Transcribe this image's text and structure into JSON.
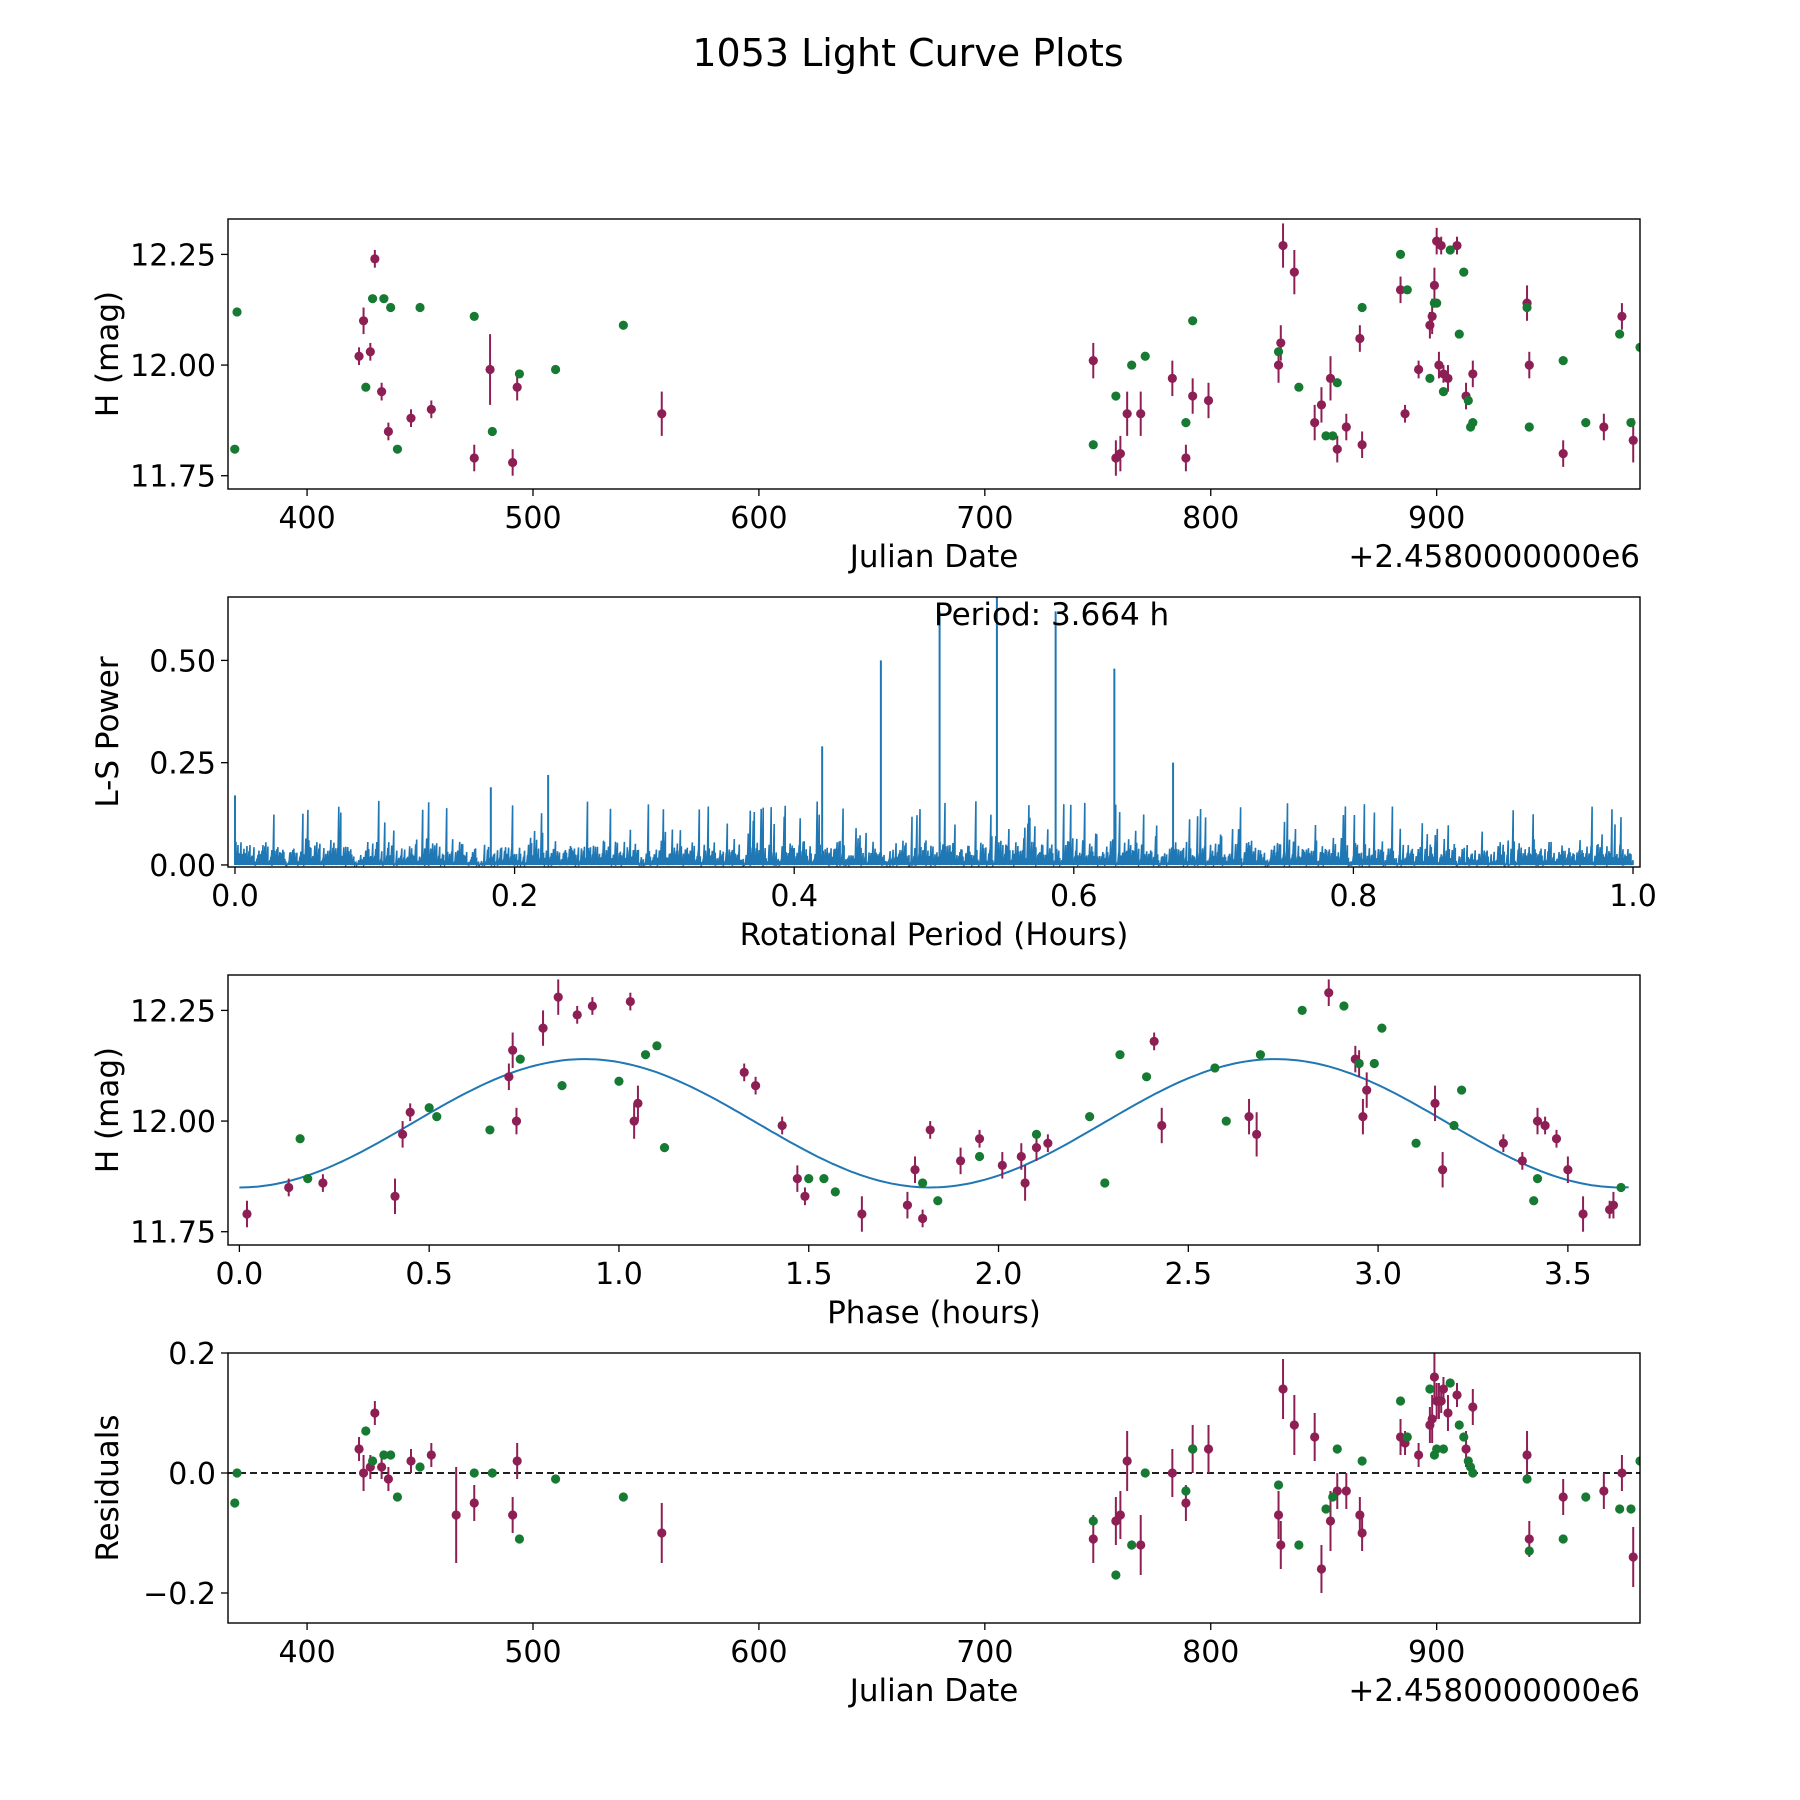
{
  "title": "1053 Light Curve Plots",
  "colors": {
    "maroon": "#8e1f55",
    "green": "#167a32",
    "line": "#1f77b4"
  },
  "chart_data": [
    {
      "type": "scatter",
      "name": "light-curve",
      "xlabel": "Julian Date",
      "ylabel": "H (mag)",
      "offset_label": "+2.4580000000e6",
      "xlim": [
        365,
        990
      ],
      "ylim": [
        11.72,
        12.33
      ],
      "xticks": [
        400,
        500,
        600,
        700,
        800,
        900
      ],
      "xtick_labels": [
        "400",
        "500",
        "600",
        "700",
        "800",
        "900"
      ],
      "yticks": [
        11.75,
        12.0,
        12.25
      ],
      "ytick_labels": [
        "11.75",
        "12.00",
        "12.25"
      ],
      "series": [
        {
          "name": "maroon",
          "color": "#8e1f55",
          "x": [
            423,
            425,
            428,
            430,
            433,
            436,
            446,
            455,
            474,
            481,
            491,
            493,
            557,
            748,
            758,
            760,
            763,
            769,
            783,
            789,
            792,
            799,
            830,
            831,
            832,
            837,
            846,
            849,
            853,
            856,
            860,
            866,
            867,
            884,
            886,
            892,
            897,
            898,
            899,
            900,
            901,
            902,
            903,
            905,
            909,
            913,
            916,
            940,
            941,
            956,
            974,
            982,
            987
          ],
          "y": [
            12.02,
            12.1,
            12.03,
            12.24,
            11.94,
            11.85,
            11.88,
            11.9,
            11.79,
            11.99,
            11.78,
            11.95,
            11.89,
            12.01,
            11.79,
            11.8,
            11.89,
            11.89,
            11.97,
            11.79,
            11.93,
            11.92,
            12.0,
            12.05,
            12.27,
            12.21,
            11.87,
            11.91,
            11.97,
            11.81,
            11.86,
            12.06,
            11.82,
            12.17,
            11.89,
            11.99,
            12.09,
            12.11,
            12.18,
            12.28,
            12.0,
            12.27,
            11.98,
            11.97,
            12.27,
            11.93,
            11.98,
            12.14,
            12.0,
            11.8,
            11.86,
            12.11,
            11.83
          ],
          "err": [
            0.02,
            0.03,
            0.02,
            0.02,
            0.02,
            0.02,
            0.02,
            0.02,
            0.03,
            0.08,
            0.03,
            0.03,
            0.05,
            0.04,
            0.04,
            0.04,
            0.05,
            0.05,
            0.04,
            0.03,
            0.04,
            0.04,
            0.04,
            0.04,
            0.05,
            0.05,
            0.04,
            0.04,
            0.05,
            0.03,
            0.03,
            0.03,
            0.03,
            0.03,
            0.02,
            0.02,
            0.03,
            0.04,
            0.04,
            0.03,
            0.03,
            0.02,
            0.02,
            0.03,
            0.02,
            0.03,
            0.03,
            0.04,
            0.03,
            0.03,
            0.03,
            0.03,
            0.05
          ]
        },
        {
          "name": "green",
          "color": "#167a32",
          "x": [
            368,
            369,
            426,
            429,
            434,
            437,
            440,
            450,
            474,
            482,
            494,
            510,
            540,
            748,
            758,
            765,
            771,
            789,
            792,
            830,
            839,
            851,
            854,
            856,
            867,
            884,
            887,
            897,
            899,
            900,
            903,
            906,
            910,
            912,
            914,
            915,
            916,
            940,
            941,
            956,
            966,
            981,
            986,
            990
          ],
          "y": [
            11.81,
            12.12,
            11.95,
            12.15,
            12.15,
            12.13,
            11.81,
            12.13,
            12.11,
            11.85,
            11.98,
            11.99,
            12.09,
            11.82,
            11.93,
            12.0,
            12.02,
            11.87,
            12.1,
            12.03,
            11.95,
            11.84,
            11.84,
            11.96,
            12.13,
            12.25,
            12.17,
            11.97,
            12.14,
            12.14,
            11.94,
            12.26,
            12.07,
            12.21,
            11.92,
            11.86,
            11.87,
            12.13,
            11.86,
            12.01,
            11.87,
            12.07,
            11.87,
            12.04
          ]
        }
      ]
    },
    {
      "type": "line",
      "name": "periodogram",
      "xlabel": "Rotational Period (Hours)",
      "ylabel": "L-S Power",
      "annotation": "Period: 3.664 h",
      "xlim": [
        -0.005,
        1.005
      ],
      "ylim": [
        -0.005,
        0.655
      ],
      "xticks": [
        0.0,
        0.2,
        0.4,
        0.6,
        0.8,
        1.0
      ],
      "xtick_labels": [
        "0.0",
        "0.2",
        "0.4",
        "0.6",
        "0.8",
        "1.0"
      ],
      "yticks": [
        0.0,
        0.25,
        0.5
      ],
      "ytick_labels": [
        "0.00",
        "0.25",
        "0.50"
      ],
      "noise_level": 0.07,
      "peaks": [
        {
          "x": 0.42,
          "y": 0.29
        },
        {
          "x": 0.462,
          "y": 0.5
        },
        {
          "x": 0.504,
          "y": 0.62
        },
        {
          "x": 0.545,
          "y": 0.655
        },
        {
          "x": 0.587,
          "y": 0.62
        },
        {
          "x": 0.629,
          "y": 0.48
        },
        {
          "x": 0.671,
          "y": 0.25
        },
        {
          "x": 0.224,
          "y": 0.22
        },
        {
          "x": 0.183,
          "y": 0.19
        },
        {
          "x": 0.0,
          "y": 0.17
        }
      ]
    },
    {
      "type": "scatter",
      "name": "phase-folded",
      "xlabel": "Phase (hours)",
      "ylabel": "H (mag)",
      "xlim": [
        -0.03,
        3.69
      ],
      "ylim": [
        11.72,
        12.33
      ],
      "xticks": [
        0.0,
        0.5,
        1.0,
        1.5,
        2.0,
        2.5,
        3.0,
        3.5
      ],
      "xtick_labels": [
        "0.0",
        "0.5",
        "1.0",
        "1.5",
        "2.0",
        "2.5",
        "3.0",
        "3.5"
      ],
      "yticks": [
        11.75,
        12.0,
        12.25
      ],
      "ytick_labels": [
        "11.75",
        "12.00",
        "12.25"
      ],
      "fit": {
        "period": 1.82,
        "mean": 11.995,
        "amplitude": 0.145,
        "phase_of_max": 0.91
      },
      "series": [
        {
          "name": "maroon",
          "color": "#8e1f55",
          "x": [
            0.02,
            0.13,
            0.22,
            0.41,
            0.43,
            0.45,
            0.71,
            0.72,
            0.73,
            0.8,
            0.84,
            0.89,
            0.93,
            1.03,
            1.04,
            1.05,
            1.33,
            1.36,
            1.43,
            1.47,
            1.49,
            1.64,
            1.76,
            1.78,
            1.8,
            1.82,
            1.9,
            1.95,
            2.01,
            2.06,
            2.07,
            2.1,
            2.13,
            2.41,
            2.43,
            2.66,
            2.68,
            2.87,
            2.94,
            2.95,
            2.96,
            2.97,
            3.15,
            3.17,
            3.33,
            3.38,
            3.42,
            3.44,
            3.47,
            3.5,
            3.54,
            3.61,
            3.62
          ],
          "y": [
            11.79,
            11.85,
            11.86,
            11.83,
            11.97,
            12.02,
            12.1,
            12.16,
            12.0,
            12.21,
            12.28,
            12.24,
            12.26,
            12.27,
            12.0,
            12.04,
            12.11,
            12.08,
            11.99,
            11.87,
            11.83,
            11.79,
            11.81,
            11.89,
            11.78,
            11.98,
            11.91,
            11.96,
            11.9,
            11.92,
            11.86,
            11.94,
            11.95,
            12.18,
            11.99,
            12.01,
            11.97,
            12.29,
            12.14,
            12.13,
            12.01,
            12.07,
            12.04,
            11.89,
            11.95,
            11.91,
            12.0,
            11.99,
            11.96,
            11.89,
            11.79,
            11.8,
            11.81
          ],
          "err": [
            0.03,
            0.02,
            0.02,
            0.04,
            0.03,
            0.02,
            0.03,
            0.04,
            0.03,
            0.04,
            0.04,
            0.02,
            0.02,
            0.02,
            0.04,
            0.04,
            0.02,
            0.02,
            0.02,
            0.03,
            0.02,
            0.04,
            0.03,
            0.03,
            0.02,
            0.02,
            0.03,
            0.02,
            0.03,
            0.03,
            0.04,
            0.03,
            0.02,
            0.02,
            0.04,
            0.04,
            0.05,
            0.03,
            0.03,
            0.03,
            0.04,
            0.04,
            0.04,
            0.04,
            0.02,
            0.02,
            0.03,
            0.02,
            0.02,
            0.03,
            0.04,
            0.02,
            0.03
          ]
        },
        {
          "name": "green",
          "color": "#167a32",
          "x": [
            0.16,
            0.18,
            0.5,
            0.52,
            0.66,
            0.74,
            0.85,
            1.0,
            1.07,
            1.1,
            1.12,
            1.5,
            1.54,
            1.57,
            1.8,
            1.84,
            1.95,
            2.1,
            2.24,
            2.28,
            2.32,
            2.39,
            2.57,
            2.6,
            2.69,
            2.8,
            2.91,
            2.95,
            2.99,
            3.01,
            3.1,
            3.2,
            3.22,
            3.41,
            3.42,
            3.64
          ],
          "y": [
            11.96,
            11.87,
            12.03,
            12.01,
            11.98,
            12.14,
            12.08,
            12.09,
            12.15,
            12.17,
            11.94,
            11.87,
            11.87,
            11.84,
            11.86,
            11.82,
            11.92,
            11.97,
            12.01,
            11.86,
            12.15,
            12.1,
            12.12,
            12.0,
            12.15,
            12.25,
            12.26,
            12.13,
            12.13,
            12.21,
            11.95,
            11.99,
            12.07,
            11.82,
            11.87,
            11.85
          ]
        }
      ]
    },
    {
      "type": "scatter",
      "name": "residuals",
      "xlabel": "Julian Date",
      "ylabel": "Residuals",
      "offset_label": "+2.4580000000e6",
      "xlim": [
        365,
        990
      ],
      "ylim": [
        -0.25,
        0.2
      ],
      "xticks": [
        400,
        500,
        600,
        700,
        800,
        900
      ],
      "xtick_labels": [
        "400",
        "500",
        "600",
        "700",
        "800",
        "900"
      ],
      "yticks": [
        -0.2,
        0.0,
        0.2
      ],
      "ytick_labels": [
        "−0.2",
        "0.0",
        "0.2"
      ],
      "reference_line": 0.0,
      "series": [
        {
          "name": "maroon",
          "color": "#8e1f55",
          "x": [
            423,
            425,
            428,
            430,
            433,
            436,
            446,
            455,
            466,
            474,
            491,
            493,
            557,
            748,
            758,
            760,
            763,
            769,
            783,
            789,
            792,
            799,
            830,
            831,
            832,
            837,
            846,
            849,
            853,
            856,
            860,
            866,
            867,
            884,
            886,
            892,
            897,
            898,
            899,
            900,
            901,
            902,
            903,
            905,
            909,
            913,
            916,
            940,
            941,
            956,
            974,
            982,
            987
          ],
          "y": [
            0.04,
            0.0,
            0.01,
            0.1,
            0.01,
            -0.01,
            0.02,
            0.03,
            -0.07,
            -0.05,
            -0.07,
            0.02,
            -0.1,
            -0.11,
            -0.08,
            -0.07,
            0.02,
            -0.12,
            0.0,
            -0.05,
            0.04,
            0.04,
            -0.07,
            -0.12,
            0.14,
            0.08,
            0.06,
            -0.16,
            -0.08,
            -0.03,
            -0.03,
            -0.07,
            -0.1,
            0.06,
            0.05,
            0.03,
            0.08,
            0.09,
            0.16,
            0.12,
            0.12,
            0.12,
            0.14,
            0.1,
            0.13,
            0.04,
            0.11,
            0.03,
            -0.11,
            -0.04,
            -0.03,
            0.0,
            -0.14
          ],
          "err": [
            0.02,
            0.03,
            0.02,
            0.02,
            0.02,
            0.02,
            0.02,
            0.02,
            0.08,
            0.03,
            0.03,
            0.03,
            0.05,
            0.04,
            0.04,
            0.04,
            0.05,
            0.05,
            0.04,
            0.03,
            0.04,
            0.04,
            0.04,
            0.04,
            0.05,
            0.05,
            0.04,
            0.04,
            0.05,
            0.03,
            0.03,
            0.03,
            0.03,
            0.03,
            0.02,
            0.02,
            0.03,
            0.04,
            0.04,
            0.03,
            0.03,
            0.02,
            0.02,
            0.03,
            0.02,
            0.03,
            0.03,
            0.04,
            0.03,
            0.03,
            0.03,
            0.03,
            0.05
          ]
        },
        {
          "name": "green",
          "color": "#167a32",
          "x": [
            368,
            369,
            426,
            429,
            434,
            437,
            440,
            450,
            474,
            482,
            494,
            510,
            540,
            748,
            758,
            765,
            771,
            789,
            792,
            830,
            839,
            851,
            854,
            856,
            867,
            884,
            887,
            897,
            899,
            900,
            903,
            906,
            910,
            912,
            914,
            915,
            916,
            940,
            941,
            956,
            966,
            981,
            986,
            990
          ],
          "y": [
            -0.05,
            0.0,
            0.07,
            0.02,
            0.03,
            0.03,
            -0.04,
            0.01,
            0.0,
            0.0,
            -0.11,
            -0.01,
            -0.04,
            -0.08,
            -0.17,
            -0.12,
            0.0,
            -0.03,
            0.04,
            -0.02,
            -0.12,
            -0.06,
            -0.04,
            0.04,
            0.02,
            0.12,
            0.06,
            0.14,
            0.03,
            0.04,
            0.04,
            0.15,
            0.08,
            0.06,
            0.02,
            0.01,
            0.0,
            -0.01,
            -0.13,
            -0.11,
            -0.04,
            -0.06,
            -0.06,
            0.02
          ]
        }
      ]
    }
  ]
}
